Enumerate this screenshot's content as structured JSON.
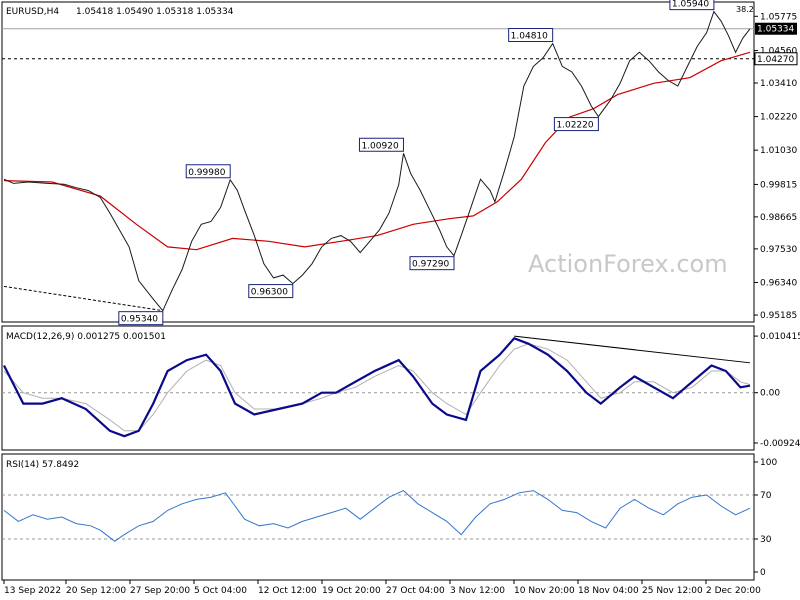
{
  "header": {
    "symbol": "EURUSD,H4",
    "ohlc": "1.05418 1.05490 1.05318 1.05334",
    "corner_value": "38.2"
  },
  "watermark": "ActionForex.com",
  "colors": {
    "price_line": "#1a1a1a",
    "moving_average": "#cc0000",
    "macd_line": "#0a0a8a",
    "macd_signal": "#b0b0b0",
    "rsi_line": "#3377cc",
    "grid": "#000000",
    "watermark": "#c8c8c8"
  },
  "chart_data": [
    {
      "type": "line",
      "panel": "price",
      "ylim": [
        0.9508,
        1.0614
      ],
      "y_ticks": [
        "1.05775",
        "1.04560",
        "1.03410",
        "1.02220",
        "1.01030",
        "0.99815",
        "0.98665",
        "0.97530",
        "0.96340",
        "0.95185"
      ],
      "current_price": "1.05334",
      "horizontal_line": "1.04270",
      "x_ticks": [
        "13 Sep 2022",
        "20 Sep 12:00",
        "27 Sep 20:00",
        "5 Oct 04:00",
        "12 Oct 12:00",
        "19 Oct 20:00",
        "27 Oct 04:00",
        "3 Nov 12:00",
        "10 Nov 20:00",
        "18 Nov 04:00",
        "25 Nov 12:00",
        "2 Dec 20:00"
      ],
      "series": [
        {
          "role": "price",
          "points": [
            [
              0,
              1.0
            ],
            [
              4,
              0.9985
            ],
            [
              10,
              0.999
            ],
            [
              18,
              0.9985
            ],
            [
              25,
              0.9982
            ],
            [
              30,
              0.997
            ],
            [
              35,
              0.996
            ],
            [
              40,
              0.9935
            ],
            [
              44,
              0.988
            ],
            [
              48,
              0.982
            ],
            [
              52,
              0.976
            ],
            [
              56,
              0.964
            ],
            [
              62,
              0.9575
            ],
            [
              66,
              0.9534
            ],
            [
              70,
              0.961
            ],
            [
              74,
              0.968
            ],
            [
              78,
              0.978
            ],
            [
              82,
              0.984
            ],
            [
              86,
              0.985
            ],
            [
              90,
              0.99
            ],
            [
              94,
              0.9998
            ],
            [
              97,
              0.996
            ],
            [
              100,
              0.989
            ],
            [
              104,
              0.98
            ],
            [
              108,
              0.97
            ],
            [
              112,
              0.965
            ],
            [
              116,
              0.966
            ],
            [
              120,
              0.963
            ],
            [
              124,
              0.966
            ],
            [
              128,
              0.97
            ],
            [
              132,
              0.976
            ],
            [
              136,
              0.979
            ],
            [
              140,
              0.98
            ],
            [
              144,
              0.978
            ],
            [
              148,
              0.974
            ],
            [
              152,
              0.978
            ],
            [
              156,
              0.982
            ],
            [
              160,
              0.988
            ],
            [
              164,
              0.998
            ],
            [
              166,
              1.0092
            ],
            [
              169,
              1.002
            ],
            [
              173,
              0.996
            ],
            [
              177,
              0.989
            ],
            [
              181,
              0.982
            ],
            [
              184,
              0.976
            ],
            [
              187,
              0.9729
            ],
            [
              190,
              0.98
            ],
            [
              194,
              0.99
            ],
            [
              198,
              1.0
            ],
            [
              202,
              0.996
            ],
            [
              204,
              0.992
            ],
            [
              208,
              1.003
            ],
            [
              212,
              1.015
            ],
            [
              216,
              1.033
            ],
            [
              220,
              1.04
            ],
            [
              224,
              1.043
            ],
            [
              228,
              1.0481
            ],
            [
              232,
              1.04
            ],
            [
              236,
              1.038
            ],
            [
              240,
              1.033
            ],
            [
              244,
              1.026
            ],
            [
              247,
              1.0222
            ],
            [
              252,
              1.028
            ],
            [
              256,
              1.034
            ],
            [
              260,
              1.042
            ],
            [
              264,
              1.045
            ],
            [
              268,
              1.042
            ],
            [
              272,
              1.038
            ],
            [
              276,
              1.035
            ],
            [
              280,
              1.033
            ],
            [
              284,
              1.04
            ],
            [
              288,
              1.047
            ],
            [
              292,
              1.052
            ],
            [
              295,
              1.0594
            ],
            [
              298,
              1.056
            ],
            [
              301,
              1.051
            ],
            [
              304,
              1.045
            ],
            [
              307,
              1.05
            ],
            [
              310,
              1.0533
            ]
          ]
        },
        {
          "role": "moving_average",
          "points": [
            [
              0,
              0.9995
            ],
            [
              20,
              0.999
            ],
            [
              40,
              0.994
            ],
            [
              55,
              0.984
            ],
            [
              68,
              0.976
            ],
            [
              80,
              0.975
            ],
            [
              95,
              0.979
            ],
            [
              110,
              0.978
            ],
            [
              125,
              0.976
            ],
            [
              140,
              0.978
            ],
            [
              155,
              0.98
            ],
            [
              170,
              0.984
            ],
            [
              185,
              0.986
            ],
            [
              195,
              0.987
            ],
            [
              205,
              0.992
            ],
            [
              215,
              1.0
            ],
            [
              225,
              1.013
            ],
            [
              235,
              1.022
            ],
            [
              245,
              1.025
            ],
            [
              255,
              1.03
            ],
            [
              270,
              1.034
            ],
            [
              285,
              1.036
            ],
            [
              298,
              1.042
            ],
            [
              310,
              1.045
            ]
          ]
        }
      ],
      "price_labels": [
        {
          "label": "1.05940",
          "x": 295,
          "y": 1.0594
        },
        {
          "label": "1.04810",
          "x": 228,
          "y": 1.0481
        },
        {
          "label": "1.02220",
          "x": 247,
          "y": 1.0222
        },
        {
          "label": "1.00920",
          "x": 166,
          "y": 1.0092
        },
        {
          "label": "0.99980",
          "x": 94,
          "y": 0.9998
        },
        {
          "label": "0.97290",
          "x": 187,
          "y": 0.9729
        },
        {
          "label": "0.96300",
          "x": 120,
          "y": 0.963
        },
        {
          "label": "0.95340",
          "x": 66,
          "y": 0.9534
        }
      ],
      "trendlines": [
        [
          [
            0,
            0.962
          ],
          [
            66,
            0.9534
          ]
        ]
      ]
    },
    {
      "type": "line",
      "panel": "macd",
      "title": "MACD(12,26,9) 0.001275 0.001501",
      "ylim": [
        -0.0098,
        0.0108
      ],
      "y_ticks": [
        "0.010415",
        "0.00",
        "-0.009244"
      ],
      "zero_line": 0,
      "series": [
        {
          "role": "macd",
          "points": [
            [
              0,
              0.005
            ],
            [
              8,
              -0.002
            ],
            [
              16,
              -0.002
            ],
            [
              24,
              -0.001
            ],
            [
              34,
              -0.003
            ],
            [
              44,
              -0.007
            ],
            [
              50,
              -0.008
            ],
            [
              56,
              -0.007
            ],
            [
              62,
              -0.002
            ],
            [
              68,
              0.004
            ],
            [
              76,
              0.006
            ],
            [
              84,
              0.007
            ],
            [
              90,
              0.004
            ],
            [
              96,
              -0.002
            ],
            [
              104,
              -0.004
            ],
            [
              114,
              -0.003
            ],
            [
              124,
              -0.002
            ],
            [
              132,
              0.0
            ],
            [
              138,
              0.0
            ],
            [
              146,
              0.002
            ],
            [
              154,
              0.004
            ],
            [
              164,
              0.006
            ],
            [
              170,
              0.003
            ],
            [
              178,
              -0.002
            ],
            [
              184,
              -0.004
            ],
            [
              192,
              -0.005
            ],
            [
              198,
              0.004
            ],
            [
              206,
              0.007
            ],
            [
              212,
              0.01
            ],
            [
              218,
              0.009
            ],
            [
              226,
              0.007
            ],
            [
              234,
              0.004
            ],
            [
              242,
              0.0
            ],
            [
              248,
              -0.002
            ],
            [
              256,
              0.001
            ],
            [
              262,
              0.003
            ],
            [
              270,
              0.001
            ],
            [
              278,
              -0.001
            ],
            [
              286,
              0.002
            ],
            [
              294,
              0.005
            ],
            [
              300,
              0.004
            ],
            [
              306,
              0.001
            ],
            [
              310,
              0.0013
            ]
          ]
        },
        {
          "role": "signal",
          "points": [
            [
              0,
              0.004
            ],
            [
              8,
              0.0
            ],
            [
              16,
              -0.001
            ],
            [
              24,
              -0.001
            ],
            [
              34,
              -0.002
            ],
            [
              44,
              -0.005
            ],
            [
              50,
              -0.007
            ],
            [
              56,
              -0.007
            ],
            [
              62,
              -0.004
            ],
            [
              68,
              0.0
            ],
            [
              76,
              0.004
            ],
            [
              84,
              0.006
            ],
            [
              90,
              0.005
            ],
            [
              96,
              0.0
            ],
            [
              104,
              -0.003
            ],
            [
              114,
              -0.003
            ],
            [
              124,
              -0.002
            ],
            [
              132,
              -0.001
            ],
            [
              138,
              0.0
            ],
            [
              146,
              0.001
            ],
            [
              154,
              0.003
            ],
            [
              164,
              0.005
            ],
            [
              170,
              0.004
            ],
            [
              178,
              0.0
            ],
            [
              184,
              -0.002
            ],
            [
              192,
              -0.004
            ],
            [
              198,
              0.0
            ],
            [
              206,
              0.005
            ],
            [
              212,
              0.008
            ],
            [
              218,
              0.009
            ],
            [
              226,
              0.008
            ],
            [
              234,
              0.006
            ],
            [
              242,
              0.002
            ],
            [
              248,
              -0.001
            ],
            [
              256,
              0.0
            ],
            [
              262,
              0.002
            ],
            [
              270,
              0.002
            ],
            [
              278,
              0.0
            ],
            [
              286,
              0.001
            ],
            [
              294,
              0.004
            ],
            [
              300,
              0.004
            ],
            [
              306,
              0.002
            ],
            [
              310,
              0.0015
            ]
          ]
        }
      ],
      "trendlines": [
        [
          [
            212,
            0.0104
          ],
          [
            310,
            0.0055
          ]
        ]
      ]
    },
    {
      "type": "line",
      "panel": "rsi",
      "title": "RSI(14) 57.8492",
      "ylim": [
        0,
        100
      ],
      "y_ticks": [
        "100",
        "70",
        "30",
        "0"
      ],
      "levels": [
        70,
        30
      ],
      "series": [
        {
          "role": "rsi",
          "points": [
            [
              0,
              56
            ],
            [
              6,
              46
            ],
            [
              12,
              52
            ],
            [
              18,
              48
            ],
            [
              24,
              50
            ],
            [
              30,
              44
            ],
            [
              36,
              42
            ],
            [
              40,
              38
            ],
            [
              46,
              28
            ],
            [
              50,
              34
            ],
            [
              56,
              42
            ],
            [
              62,
              46
            ],
            [
              68,
              56
            ],
            [
              74,
              62
            ],
            [
              80,
              66
            ],
            [
              86,
              68
            ],
            [
              92,
              72
            ],
            [
              96,
              60
            ],
            [
              100,
              48
            ],
            [
              106,
              42
            ],
            [
              112,
              44
            ],
            [
              118,
              40
            ],
            [
              124,
              46
            ],
            [
              130,
              50
            ],
            [
              136,
              54
            ],
            [
              142,
              58
            ],
            [
              148,
              48
            ],
            [
              154,
              58
            ],
            [
              160,
              68
            ],
            [
              166,
              74
            ],
            [
              172,
              62
            ],
            [
              178,
              54
            ],
            [
              184,
              46
            ],
            [
              190,
              34
            ],
            [
              196,
              50
            ],
            [
              202,
              62
            ],
            [
              208,
              66
            ],
            [
              214,
              72
            ],
            [
              220,
              74
            ],
            [
              226,
              66
            ],
            [
              232,
              56
            ],
            [
              238,
              54
            ],
            [
              244,
              46
            ],
            [
              250,
              40
            ],
            [
              256,
              58
            ],
            [
              262,
              66
            ],
            [
              268,
              58
            ],
            [
              274,
              52
            ],
            [
              280,
              62
            ],
            [
              286,
              68
            ],
            [
              292,
              70
            ],
            [
              298,
              60
            ],
            [
              304,
              52
            ],
            [
              310,
              58
            ]
          ]
        }
      ]
    }
  ]
}
